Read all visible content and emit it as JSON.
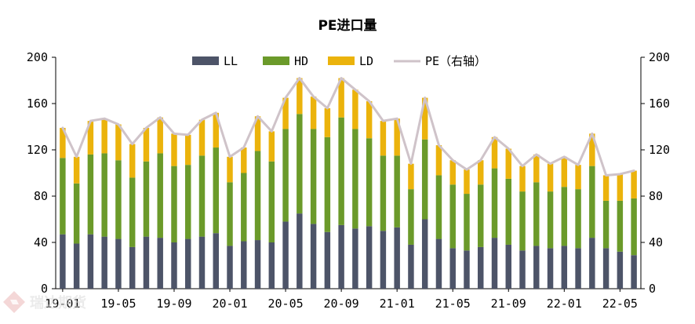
{
  "chart_data": {
    "type": "bar",
    "stacked": true,
    "title": "PE进口量",
    "xlabel": "",
    "ylabel": "",
    "ylim": [
      0,
      200
    ],
    "y2lim": [
      0,
      200
    ],
    "yticks": [
      0,
      40,
      80,
      120,
      160,
      200
    ],
    "grid": false,
    "legend_position": "top",
    "categories": [
      "19-01",
      "19-02",
      "19-03",
      "19-04",
      "19-05",
      "19-06",
      "19-07",
      "19-08",
      "19-09",
      "19-10",
      "19-11",
      "19-12",
      "20-01",
      "20-02",
      "20-03",
      "20-04",
      "20-05",
      "20-06",
      "20-07",
      "20-08",
      "20-09",
      "20-10",
      "20-11",
      "20-12",
      "21-01",
      "21-02",
      "21-03",
      "21-04",
      "21-05",
      "21-06",
      "21-07",
      "21-08",
      "21-09",
      "21-10",
      "21-11",
      "21-12",
      "22-01",
      "22-02",
      "22-03",
      "22-04",
      "22-05",
      "22-06"
    ],
    "x_tick_labels": [
      "19-01",
      "19-05",
      "19-09",
      "20-01",
      "20-05",
      "20-09",
      "21-01",
      "21-05",
      "21-09",
      "22-01",
      "22-05"
    ],
    "x_tick_every": 4,
    "series": [
      {
        "name": "LL",
        "kind": "bar",
        "color": "#4d5468",
        "values": [
          47,
          39,
          47,
          45,
          43,
          36,
          45,
          44,
          40,
          43,
          45,
          48,
          37,
          41,
          42,
          40,
          58,
          65,
          56,
          49,
          55,
          52,
          54,
          50,
          53,
          38,
          60,
          43,
          35,
          33,
          36,
          44,
          38,
          33,
          37,
          35,
          37,
          35,
          44,
          35,
          32,
          29
        ]
      },
      {
        "name": "HD",
        "kind": "bar",
        "color": "#6b9a2a",
        "values": [
          66,
          52,
          69,
          72,
          68,
          60,
          65,
          73,
          66,
          64,
          70,
          74,
          55,
          59,
          77,
          70,
          80,
          86,
          82,
          82,
          93,
          86,
          76,
          65,
          62,
          48,
          69,
          55,
          55,
          49,
          54,
          60,
          57,
          51,
          55,
          49,
          51,
          51,
          62,
          41,
          44,
          49
        ]
      },
      {
        "name": "LD",
        "kind": "bar",
        "color": "#ebb30c",
        "values": [
          26,
          23,
          29,
          30,
          31,
          29,
          29,
          31,
          28,
          26,
          31,
          30,
          22,
          22,
          30,
          26,
          27,
          31,
          28,
          25,
          34,
          34,
          32,
          30,
          32,
          22,
          36,
          26,
          21,
          21,
          21,
          27,
          26,
          22,
          24,
          24,
          26,
          21,
          28,
          22,
          23,
          24
        ]
      },
      {
        "name": "PE（右轴）",
        "kind": "line",
        "axis": "right",
        "color": "#cfc3c9",
        "values": [
          139,
          114,
          145,
          147,
          142,
          125,
          139,
          148,
          134,
          133,
          146,
          152,
          114,
          122,
          149,
          136,
          165,
          182,
          166,
          156,
          182,
          172,
          162,
          145,
          147,
          108,
          165,
          124,
          111,
          103,
          111,
          131,
          121,
          106,
          116,
          108,
          114,
          107,
          134,
          98,
          99,
          102
        ]
      }
    ]
  },
  "watermark": {
    "text": "瑞达期货"
  }
}
